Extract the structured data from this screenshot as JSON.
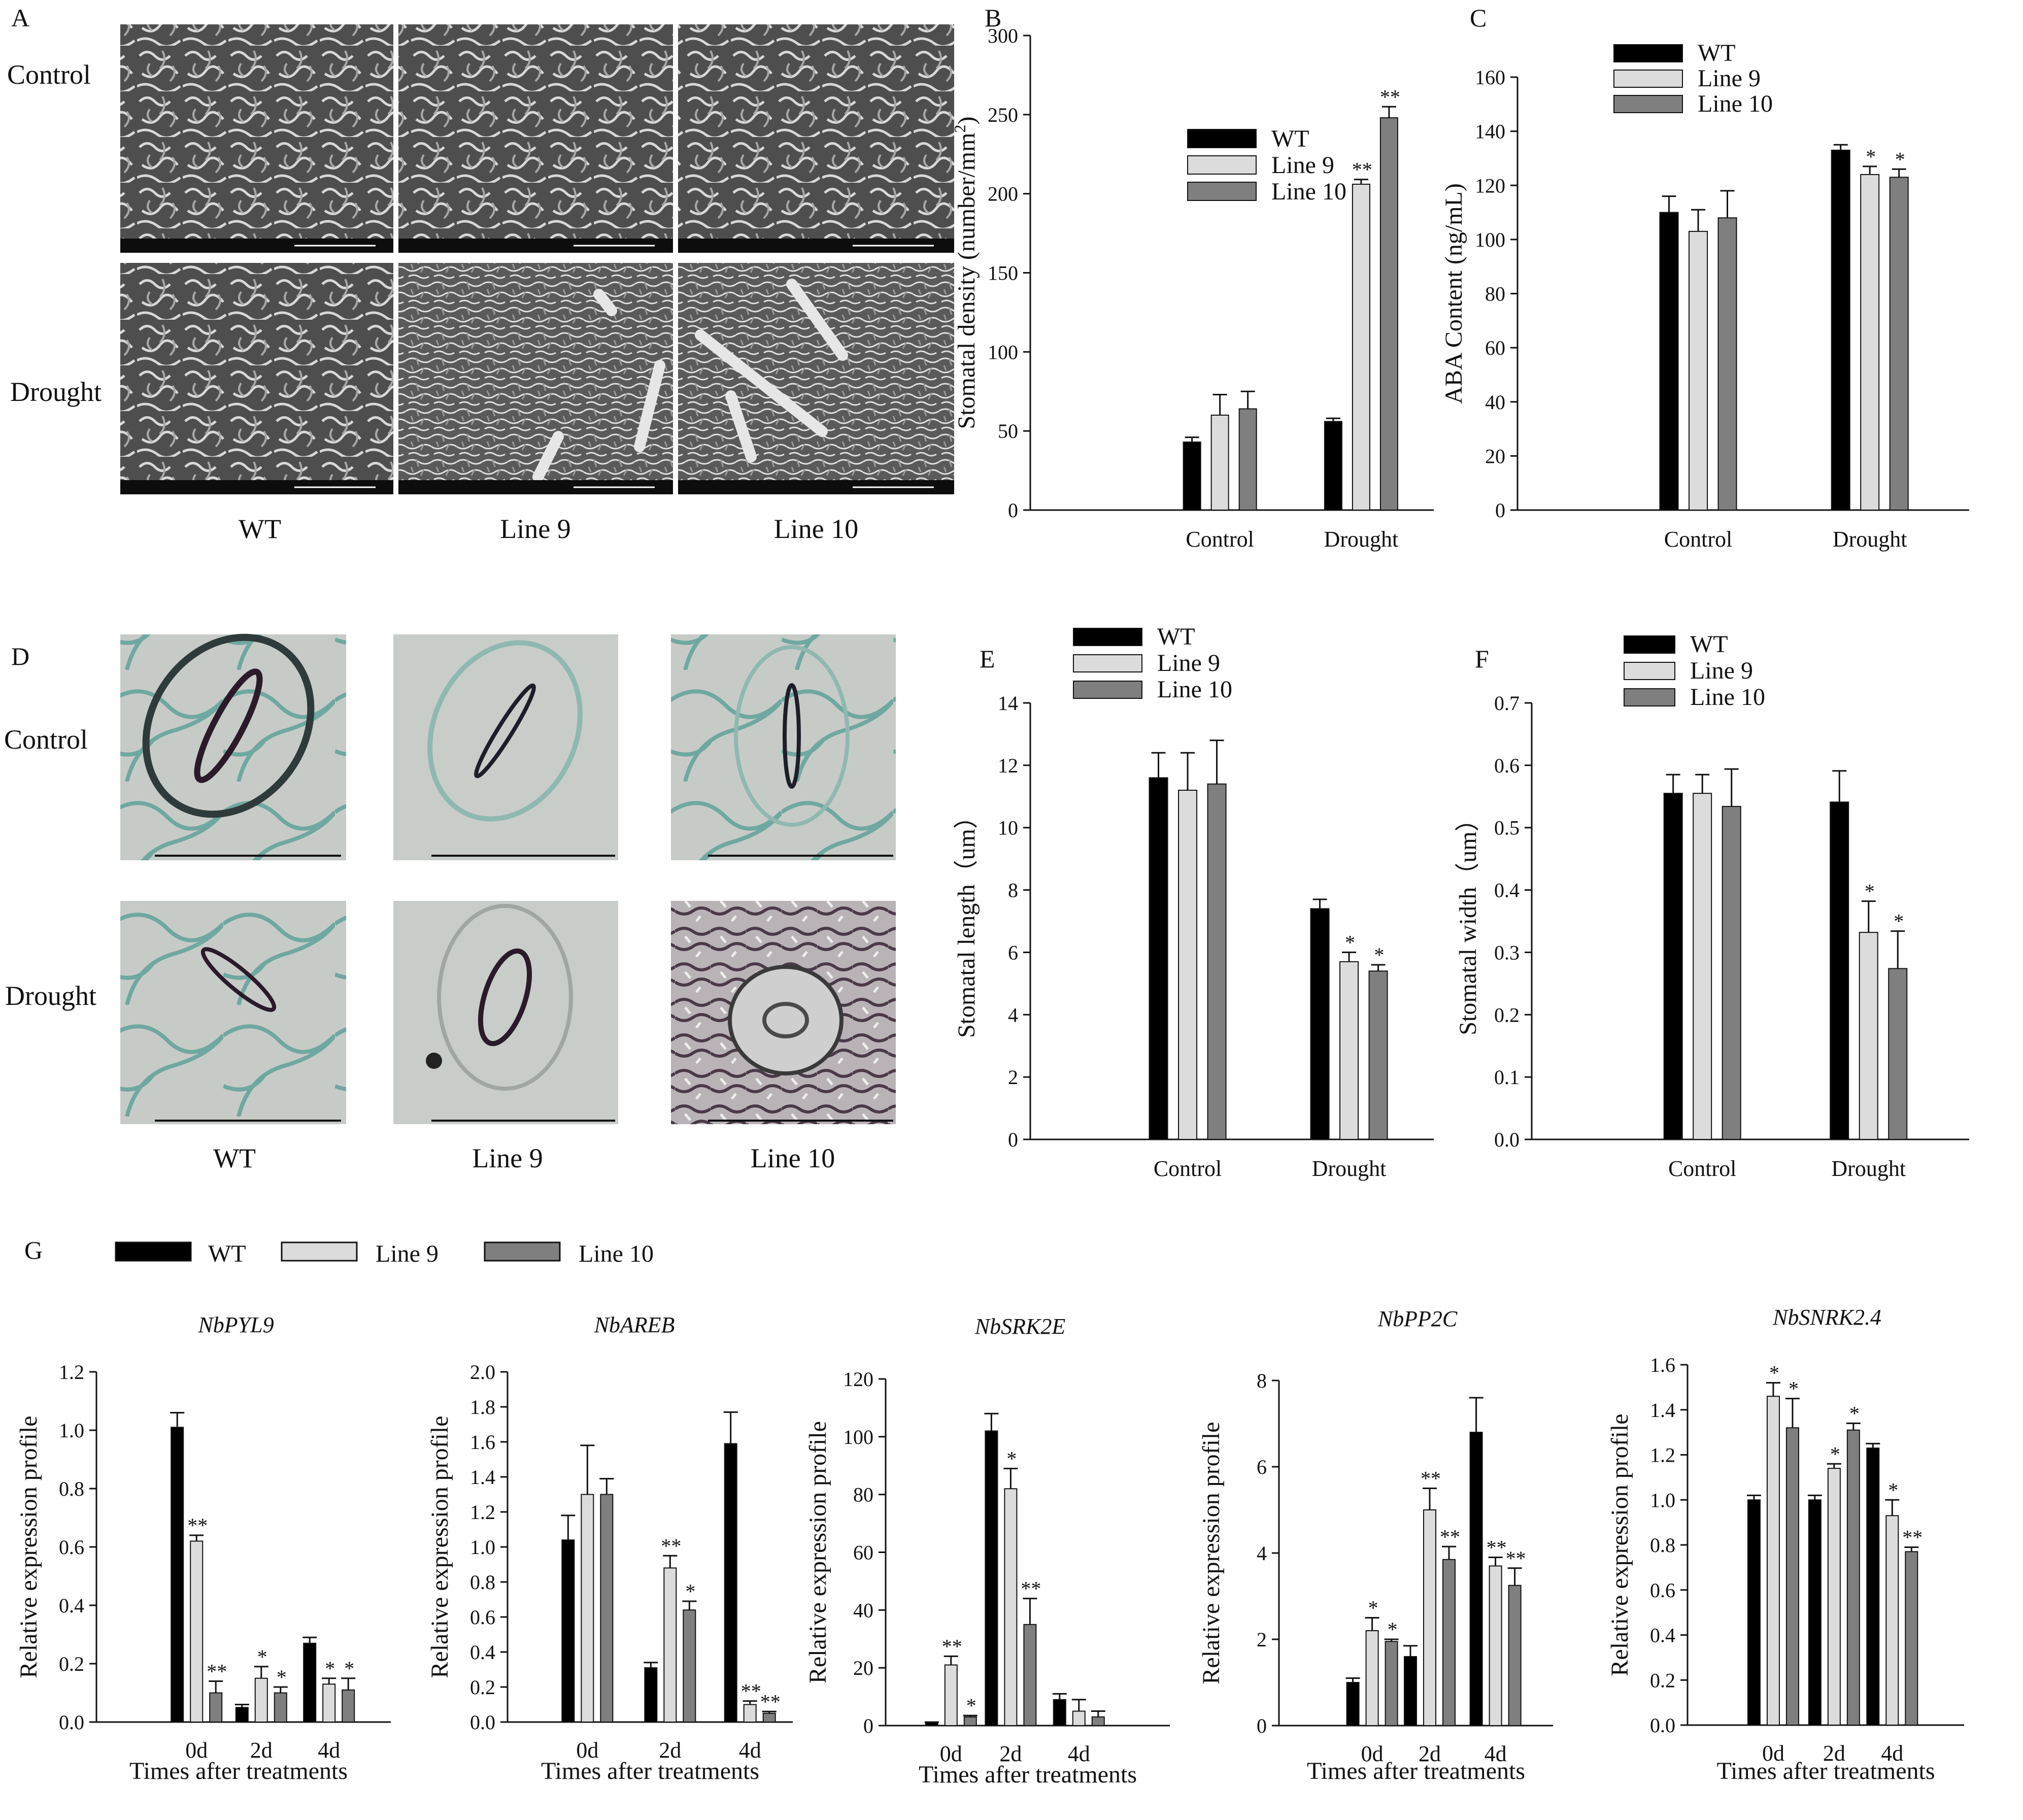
{
  "colors": {
    "WT": "#000000",
    "Line 9": "#dcdcdc",
    "Line 10": "#7f7f7f",
    "border": "#111111"
  },
  "panels": {
    "A": "A",
    "B": "B",
    "C": "C",
    "D": "D",
    "E": "E",
    "F": "F",
    "G": "G"
  },
  "micrographs": {
    "row_labels": [
      "Control",
      "Drought"
    ],
    "col_labels": [
      "WT",
      "Line 9",
      "Line 10"
    ]
  },
  "chart_data": [
    {
      "id": "B",
      "type": "bar",
      "categories": [
        "Control",
        "Drought"
      ],
      "ylabel": "Stomatal density (number/mm2)",
      "ylim": [
        0,
        300
      ],
      "yticks": [
        0,
        50,
        100,
        150,
        200,
        250,
        300
      ],
      "series": [
        {
          "name": "WT",
          "values": [
            43,
            56
          ],
          "errors": [
            3,
            2
          ]
        },
        {
          "name": "Line 9",
          "values": [
            60,
            206
          ],
          "errors": [
            13,
            3
          ]
        },
        {
          "name": "Line 10",
          "values": [
            64,
            248
          ],
          "errors": [
            11,
            7
          ]
        }
      ],
      "significance": [
        [
          "",
          ""
        ],
        [
          "",
          "**"
        ],
        [
          "",
          "**"
        ]
      ],
      "legend": "top-center"
    },
    {
      "id": "C",
      "type": "bar",
      "categories": [
        "Control",
        "Drought"
      ],
      "ylabel": "ABA Content (ng/mL)",
      "ylim": [
        0,
        160
      ],
      "yticks": [
        0,
        20,
        40,
        60,
        80,
        100,
        120,
        140,
        160
      ],
      "series": [
        {
          "name": "WT",
          "values": [
            110,
            133
          ],
          "errors": [
            6,
            2
          ]
        },
        {
          "name": "Line 9",
          "values": [
            103,
            124
          ],
          "errors": [
            8,
            3
          ]
        },
        {
          "name": "Line 10",
          "values": [
            108,
            123
          ],
          "errors": [
            10,
            3
          ]
        }
      ],
      "significance": [
        [
          "",
          ""
        ],
        [
          "",
          "*"
        ],
        [
          "",
          "*"
        ]
      ],
      "legend": "top-left"
    },
    {
      "id": "E",
      "type": "bar",
      "categories": [
        "Control",
        "Drought"
      ],
      "ylabel": "Stomatal length（um）",
      "ylim": [
        0,
        14
      ],
      "yticks": [
        0,
        2,
        4,
        6,
        8,
        10,
        12,
        14
      ],
      "series": [
        {
          "name": "WT",
          "values": [
            11.6,
            7.4
          ],
          "errors": [
            0.8,
            0.3
          ]
        },
        {
          "name": "Line 9",
          "values": [
            11.2,
            5.7
          ],
          "errors": [
            1.2,
            0.3
          ]
        },
        {
          "name": "Line 10",
          "values": [
            11.4,
            5.4
          ],
          "errors": [
            1.4,
            0.2
          ]
        }
      ],
      "significance": [
        [
          "",
          ""
        ],
        [
          "",
          "*"
        ],
        [
          "",
          "*"
        ]
      ],
      "legend": "top-left"
    },
    {
      "id": "F",
      "type": "bar",
      "categories": [
        "Control",
        "Drought"
      ],
      "ylabel": "Stomatal width（um）",
      "ylim": [
        0,
        0.7
      ],
      "yticks": [
        "0.0",
        "0.1",
        "0.2",
        "0.3",
        "0.4",
        "0.5",
        "0.6",
        "0.7"
      ],
      "series": [
        {
          "name": "WT",
          "values": [
            0.555,
            0.541
          ],
          "errors": [
            0.03,
            0.05
          ]
        },
        {
          "name": "Line 9",
          "values": [
            0.555,
            0.332
          ],
          "errors": [
            0.03,
            0.05
          ]
        },
        {
          "name": "Line 10",
          "values": [
            0.534,
            0.274
          ],
          "errors": [
            0.06,
            0.06
          ]
        }
      ],
      "significance": [
        [
          "",
          ""
        ],
        [
          "",
          "*"
        ],
        [
          "",
          "*"
        ]
      ],
      "legend": "top-left"
    },
    {
      "id": "G1",
      "type": "bar",
      "title": "NbPYL9",
      "categories": [
        "0d",
        "2d",
        "4d"
      ],
      "xlabel": "Times after treatments",
      "ylabel": "Relative expression profile",
      "ylim": [
        0,
        1.2
      ],
      "yticks": [
        "0.0",
        "0.2",
        "0.4",
        "0.6",
        "0.8",
        "1.0",
        "1.2"
      ],
      "series": [
        {
          "name": "WT",
          "values": [
            1.01,
            0.05,
            0.27
          ],
          "errors": [
            0.05,
            0.01,
            0.02
          ]
        },
        {
          "name": "Line 9",
          "values": [
            0.62,
            0.15,
            0.13
          ],
          "errors": [
            0.02,
            0.04,
            0.02
          ]
        },
        {
          "name": "Line 10",
          "values": [
            0.1,
            0.1,
            0.11
          ],
          "errors": [
            0.04,
            0.02,
            0.04
          ]
        }
      ],
      "significance": [
        [
          "",
          "",
          ""
        ],
        [
          "**",
          "*",
          "*"
        ],
        [
          "**",
          "*",
          "*"
        ]
      ]
    },
    {
      "id": "G2",
      "type": "bar",
      "title": "NbAREB",
      "categories": [
        "0d",
        "2d",
        "4d"
      ],
      "xlabel": "Times after treatments",
      "ylabel": "Relative expression profile",
      "ylim": [
        0,
        2.0
      ],
      "yticks": [
        "0.0",
        "0.2",
        "0.4",
        "0.6",
        "0.8",
        "1.0",
        "1.2",
        "1.4",
        "1.6",
        "1.8",
        "2.0"
      ],
      "series": [
        {
          "name": "WT",
          "values": [
            1.04,
            0.31,
            1.59
          ],
          "errors": [
            0.14,
            0.03,
            0.18
          ]
        },
        {
          "name": "Line 9",
          "values": [
            1.3,
            0.88,
            0.1
          ],
          "errors": [
            0.28,
            0.07,
            0.02
          ]
        },
        {
          "name": "Line 10",
          "values": [
            1.3,
            0.64,
            0.05
          ],
          "errors": [
            0.09,
            0.05,
            0.01
          ]
        }
      ],
      "significance": [
        [
          "",
          "",
          ""
        ],
        [
          "",
          "**",
          "**"
        ],
        [
          "",
          "*",
          "**"
        ]
      ]
    },
    {
      "id": "G3",
      "type": "bar",
      "title": "NbSRK2E",
      "categories": [
        "0d",
        "2d",
        "4d"
      ],
      "xlabel": "Times after treatments",
      "ylabel": "Relative expression profile",
      "ylim": [
        0,
        120
      ],
      "yticks": [
        "0",
        "20",
        "40",
        "60",
        "80",
        "100",
        "120"
      ],
      "series": [
        {
          "name": "WT",
          "values": [
            1,
            102,
            9
          ],
          "errors": [
            0.2,
            6,
            2
          ]
        },
        {
          "name": "Line 9",
          "values": [
            21,
            82,
            5
          ],
          "errors": [
            3,
            7,
            4
          ]
        },
        {
          "name": "Line 10",
          "values": [
            3,
            35,
            3
          ],
          "errors": [
            0.5,
            9,
            2
          ]
        }
      ],
      "significance": [
        [
          "",
          "",
          ""
        ],
        [
          "**",
          "*",
          ""
        ],
        [
          "*",
          "**",
          ""
        ]
      ]
    },
    {
      "id": "G4",
      "type": "bar",
      "title": "NbPP2C",
      "categories": [
        "0d",
        "2d",
        "4d"
      ],
      "xlabel": "Times after treatments",
      "ylabel": "Relative expression profile",
      "ylim": [
        0,
        8
      ],
      "yticks": [
        "0",
        "2",
        "4",
        "6",
        "8"
      ],
      "series": [
        {
          "name": "WT",
          "values": [
            1.0,
            1.6,
            6.8
          ],
          "errors": [
            0.1,
            0.25,
            0.8
          ]
        },
        {
          "name": "Line 9",
          "values": [
            2.2,
            5.0,
            3.7
          ],
          "errors": [
            0.3,
            0.5,
            0.2
          ]
        },
        {
          "name": "Line 10",
          "values": [
            1.95,
            3.85,
            3.25
          ],
          "errors": [
            0.05,
            0.3,
            0.4
          ]
        }
      ],
      "significance": [
        [
          "",
          "",
          ""
        ],
        [
          "*",
          "**",
          "**"
        ],
        [
          "*",
          "**",
          "**"
        ]
      ]
    },
    {
      "id": "G5",
      "type": "bar",
      "title": "NbSNRK2.4",
      "categories": [
        "0d",
        "2d",
        "4d"
      ],
      "xlabel": "Times after treatments",
      "ylabel": "Relative expression profile",
      "ylim": [
        0,
        1.6
      ],
      "yticks": [
        "0.0",
        "0.2",
        "0.4",
        "0.6",
        "0.8",
        "1.0",
        "1.2",
        "1.4",
        "1.6"
      ],
      "series": [
        {
          "name": "WT",
          "values": [
            1.0,
            1.0,
            1.23
          ],
          "errors": [
            0.02,
            0.02,
            0.02
          ]
        },
        {
          "name": "Line 9",
          "values": [
            1.46,
            1.14,
            0.93
          ],
          "errors": [
            0.06,
            0.02,
            0.07
          ]
        },
        {
          "name": "Line 10",
          "values": [
            1.32,
            1.31,
            0.77
          ],
          "errors": [
            0.13,
            0.03,
            0.02
          ]
        }
      ],
      "significance": [
        [
          "",
          "",
          ""
        ],
        [
          "*",
          "*",
          "*"
        ],
        [
          "*",
          "*",
          "**"
        ]
      ]
    }
  ]
}
